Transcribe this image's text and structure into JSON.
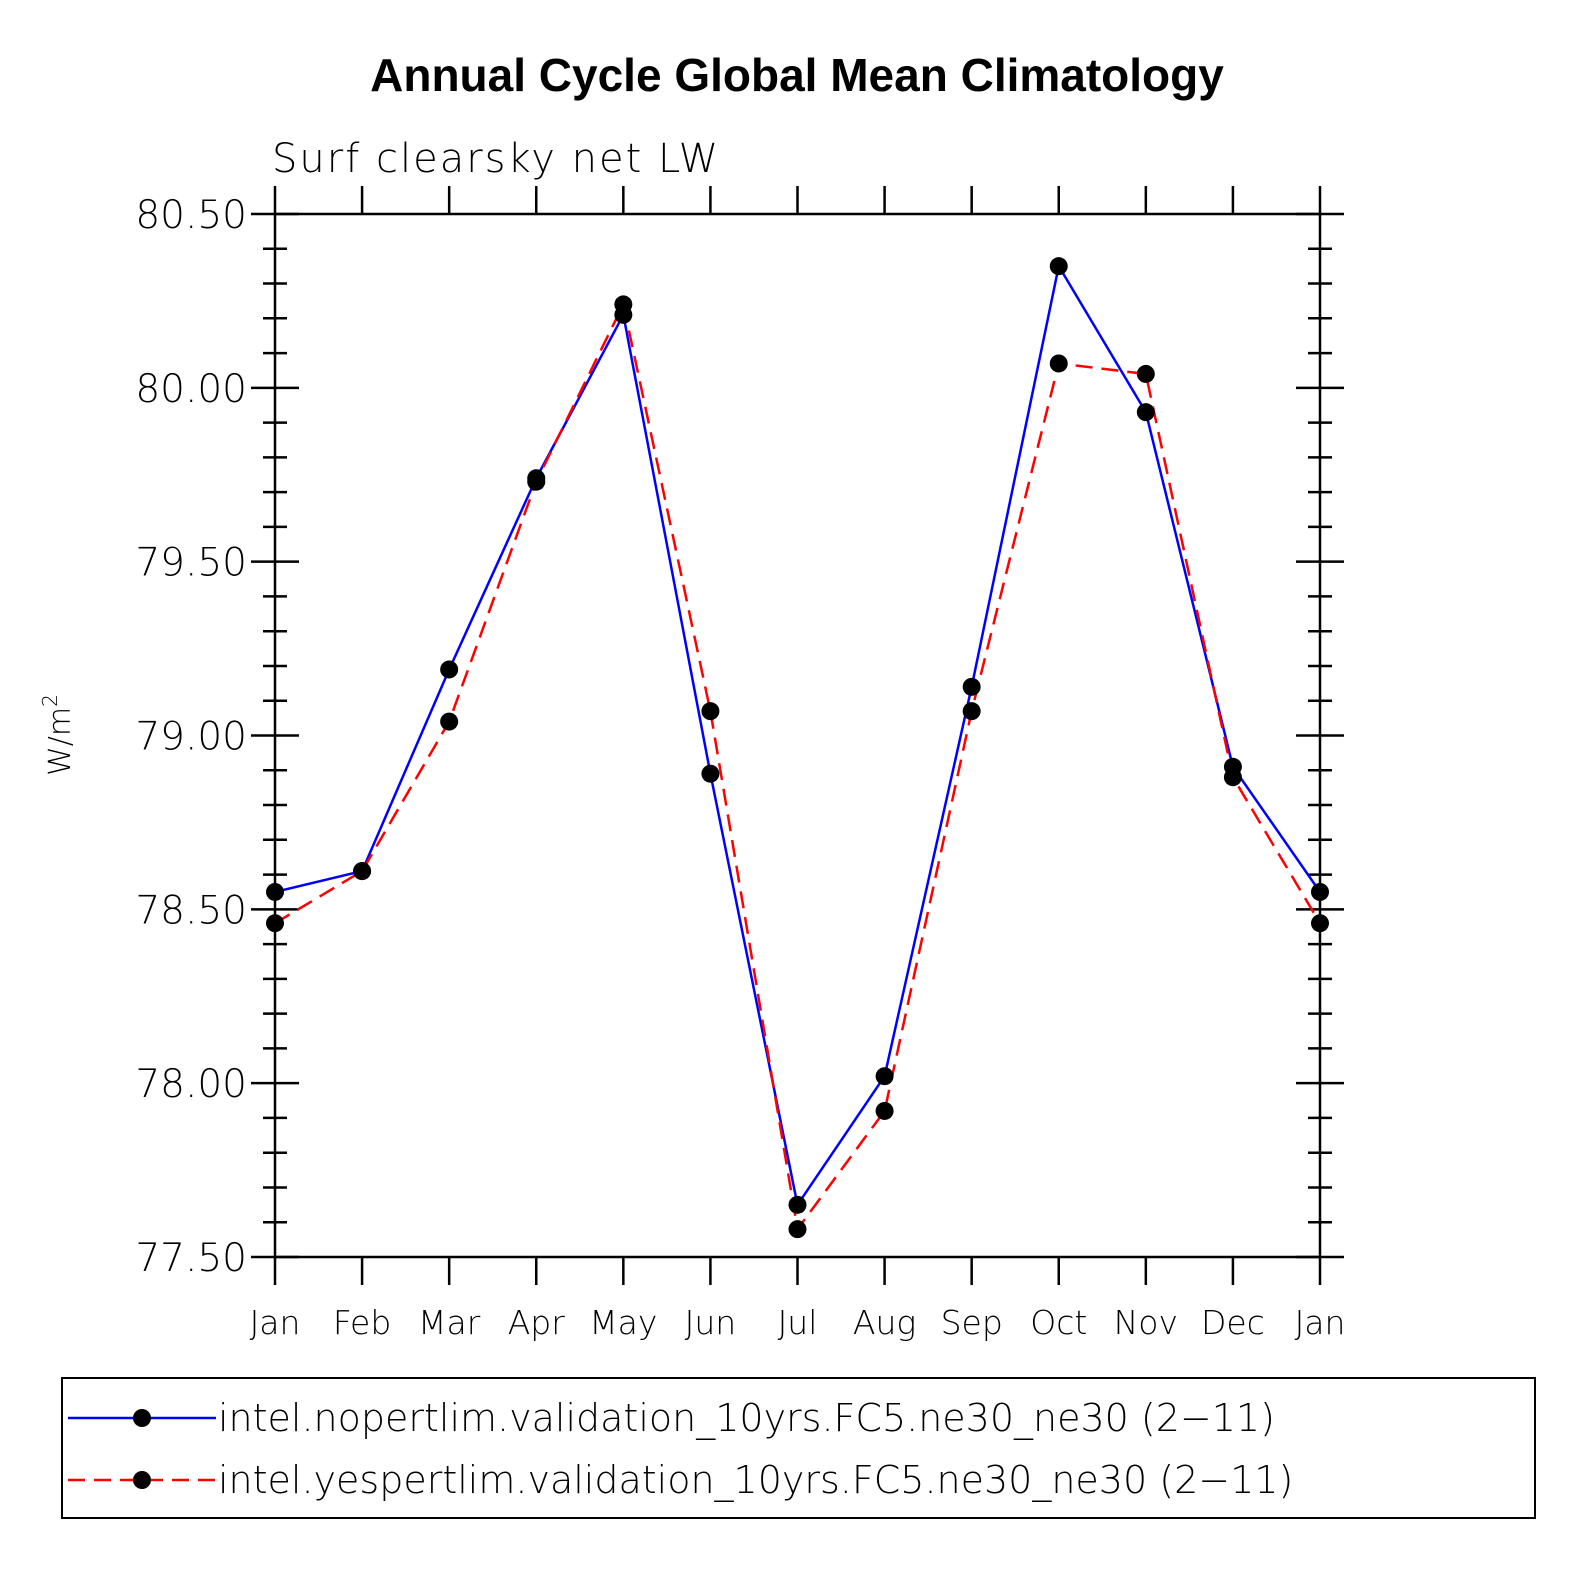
{
  "chart_data": {
    "type": "line",
    "title": "Annual Cycle Global Mean Climatology",
    "subtitle": "Surf clearsky net LW",
    "ylabel": "W/m",
    "ylabel_superscript": "2",
    "ylim": [
      77.5,
      80.5
    ],
    "yticks": [
      77.5,
      78.0,
      78.5,
      79.0,
      79.5,
      80.0,
      80.5
    ],
    "ytick_labels": [
      "77.50",
      "78.00",
      "78.50",
      "79.00",
      "79.50",
      "80.00",
      "80.50"
    ],
    "categories": [
      "Jan",
      "Feb",
      "Mar",
      "Apr",
      "May",
      "Jun",
      "Jul",
      "Aug",
      "Sep",
      "Oct",
      "Nov",
      "Dec",
      "Jan"
    ],
    "series": [
      {
        "name": "intel.nopertlim.validation_10yrs.FC5.ne30_ne30 (2−11)",
        "color": "#0000ff",
        "dash": "solid",
        "values": [
          78.55,
          78.61,
          79.19,
          79.74,
          80.21,
          78.89,
          77.65,
          78.02,
          79.14,
          80.35,
          79.93,
          78.91,
          78.55
        ]
      },
      {
        "name": "intel.yespertlim.validation_10yrs.FC5.ne30_ne30 (2−11)",
        "color": "#ff0000",
        "dash": "dashed",
        "values": [
          78.46,
          78.61,
          79.04,
          79.73,
          80.24,
          79.07,
          77.58,
          77.92,
          79.07,
          80.07,
          80.04,
          78.88,
          78.46
        ]
      }
    ],
    "legend_position": "bottom",
    "marker_color": "#000000"
  }
}
